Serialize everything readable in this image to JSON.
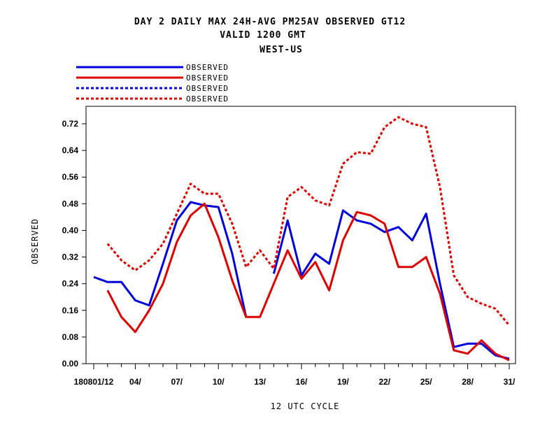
{
  "titles": {
    "line1": "DAY 2 DAILY MAX   24H-AVG PM25AV OBSERVED GT12",
    "line2": "VALID 1200 GMT",
    "line3": "WEST-US"
  },
  "chart_data": {
    "type": "line",
    "xlabel": "12 UTC CYCLE",
    "ylabel": "OBSERVED",
    "ylim": [
      0,
      0.76
    ],
    "xlim": [
      0,
      31
    ],
    "yticks": [
      0.0,
      0.08,
      0.16,
      0.24,
      0.32,
      0.4,
      0.48,
      0.56,
      0.64,
      0.72
    ],
    "ytick_labels": [
      "0.00",
      "0.08",
      "0.16",
      "0.24",
      "0.32",
      "0.40",
      "0.48",
      "0.56",
      "0.64",
      "0.72"
    ],
    "xticks": [
      0,
      3,
      6,
      9,
      12,
      15,
      18,
      21,
      24,
      27,
      30
    ],
    "xtick_labels": [
      "180801/12",
      "04/",
      "07/",
      "10/",
      "13/",
      "16/",
      "19/",
      "22/",
      "25/",
      "28/",
      "31/"
    ],
    "grid": false,
    "legend_position": "top-left",
    "series": [
      {
        "name": "OBSERVED",
        "color": "#0000dd",
        "style": "solid",
        "values": [
          0.26,
          0.245,
          0.245,
          0.19,
          0.175,
          0.3,
          0.43,
          0.485,
          0.475,
          0.47,
          0.33,
          0.14,
          null,
          0.27,
          0.43,
          0.265,
          0.33,
          0.3,
          0.46,
          0.43,
          0.42,
          0.395,
          0.41,
          0.37,
          0.45,
          0.24,
          0.05,
          0.06,
          0.06,
          0.025,
          0.015
        ]
      },
      {
        "name": "OBSERVED",
        "color": "#dd0000",
        "style": "solid",
        "values": [
          null,
          0.22,
          0.14,
          0.095,
          0.16,
          0.24,
          0.365,
          0.445,
          0.48,
          0.38,
          0.25,
          0.14,
          0.14,
          0.24,
          0.34,
          0.255,
          0.305,
          0.22,
          0.37,
          0.455,
          0.445,
          0.42,
          0.29,
          0.29,
          0.32,
          0.21,
          0.04,
          0.03,
          0.07,
          0.03,
          0.01
        ]
      },
      {
        "name": "OBSERVED",
        "color": "#0000dd",
        "style": "dashed",
        "values": []
      },
      {
        "name": "OBSERVED",
        "color": "#dd0000",
        "style": "dashed",
        "values": [
          null,
          0.36,
          0.31,
          0.28,
          0.31,
          0.36,
          0.45,
          0.54,
          0.51,
          0.51,
          0.42,
          0.29,
          0.34,
          0.285,
          0.5,
          0.53,
          0.49,
          0.475,
          0.6,
          0.635,
          0.63,
          0.71,
          0.74,
          0.72,
          0.71,
          0.53,
          0.265,
          0.2,
          0.18,
          0.165,
          0.115
        ]
      }
    ]
  }
}
